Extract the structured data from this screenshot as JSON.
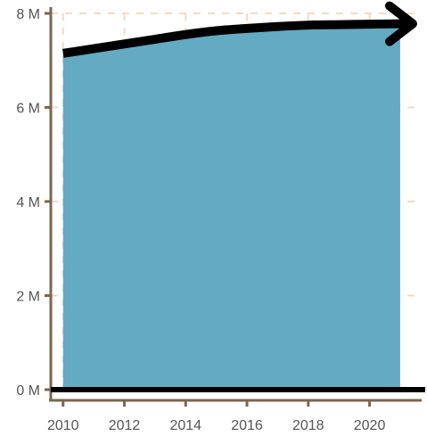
{
  "chart_data": {
    "type": "area",
    "title": "",
    "xlabel": "",
    "ylabel": "",
    "x": [
      2010,
      2011,
      2012,
      2013,
      2014,
      2015,
      2016,
      2017,
      2018,
      2019,
      2020,
      2021
    ],
    "values": [
      7.15,
      7.25,
      7.35,
      7.45,
      7.55,
      7.63,
      7.68,
      7.72,
      7.75,
      7.76,
      7.77,
      7.78
    ],
    "xlim": [
      2009.6,
      2021.7
    ],
    "ylim": [
      0,
      8
    ],
    "x_ticks": [
      2010,
      2012,
      2014,
      2016,
      2018,
      2020
    ],
    "y_ticks": [
      0,
      2,
      4,
      6,
      8
    ],
    "y_tick_labels": [
      "0 M",
      "2 M",
      "4 M",
      "6 M",
      "8 M"
    ],
    "grid": true,
    "legend": "none",
    "colors": {
      "area": "#63aac2",
      "trend_line": "#000000",
      "axis": "#7a6652",
      "grid": "#f0dcc5",
      "zero_line": "#000000",
      "tick_label": "#555555"
    }
  }
}
